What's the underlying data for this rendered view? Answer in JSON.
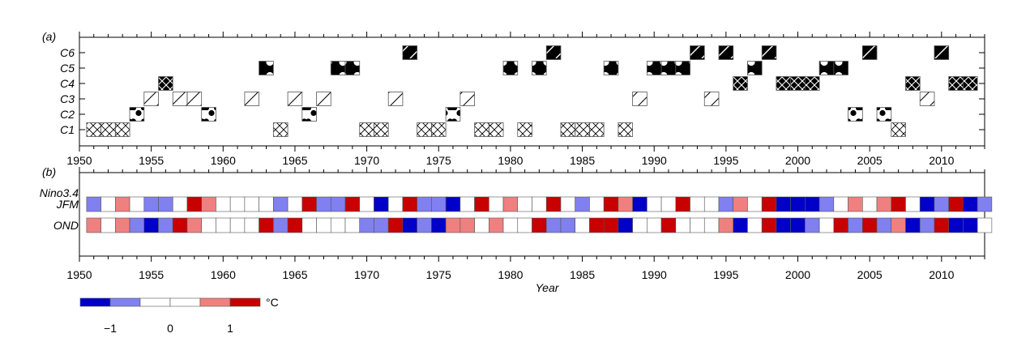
{
  "chart_data": [
    {
      "panel": "(a)",
      "type": "heatmap",
      "x_ticks": [
        1950,
        1955,
        1960,
        1965,
        1970,
        1975,
        1980,
        1985,
        1990,
        1995,
        2000,
        2005,
        2010
      ],
      "xlim": [
        1950,
        2013
      ],
      "row_labels": [
        "C1",
        "C2",
        "C3",
        "C4",
        "C5",
        "C6"
      ],
      "marks": {
        "C1": [
          1951,
          1952,
          1953,
          1964,
          1970,
          1971,
          1974,
          1975,
          1978,
          1979,
          1981,
          1984,
          1985,
          1986,
          1988,
          2007
        ],
        "C2": [
          1954,
          1959,
          1966,
          1976,
          2004,
          2006
        ],
        "C3": [
          1955,
          1957,
          1958,
          1962,
          1965,
          1967,
          1972,
          1977,
          1989,
          1994,
          2009
        ],
        "C4": [
          1956,
          1996,
          1999,
          2000,
          2001,
          2008,
          2011,
          2012
        ],
        "C5": [
          1963,
          1968,
          1969,
          1980,
          1982,
          1987,
          1990,
          1991,
          1992,
          1997,
          2002,
          2003
        ],
        "C6": [
          1973,
          1983,
          1993,
          1995,
          1998,
          2005,
          2010
        ]
      }
    },
    {
      "panel": "(b)",
      "type": "heatmap",
      "title": "Nino3.4",
      "x_ticks": [
        1950,
        1955,
        1960,
        1965,
        1970,
        1975,
        1980,
        1985,
        1990,
        1995,
        2000,
        2005,
        2010
      ],
      "xlim": [
        1950,
        2013
      ],
      "xlabel": "Year",
      "row_labels": [
        "JFM",
        "OND"
      ],
      "start_year": 1951,
      "rows": {
        "JFM": [
          -1,
          0,
          1,
          0,
          -1,
          -1,
          0,
          2,
          1,
          0,
          0,
          0,
          0,
          -1,
          0,
          2,
          -1,
          -1,
          2,
          0,
          -2,
          0,
          2,
          -1,
          -1,
          -2,
          0,
          2,
          0,
          1,
          0,
          0,
          2,
          0,
          -1,
          0,
          2,
          1,
          -2,
          0,
          0,
          2,
          0,
          0,
          -1,
          1,
          0,
          2,
          -2,
          -2,
          -2,
          -1,
          0,
          1,
          0,
          1,
          2,
          0,
          -2,
          -1,
          2,
          -2,
          -1
        ],
        "OND": [
          1,
          0,
          1,
          -1,
          -2,
          -1,
          2,
          1,
          0,
          0,
          0,
          0,
          2,
          -1,
          2,
          0,
          0,
          0,
          0,
          -1,
          -1,
          2,
          -2,
          -1,
          -2,
          1,
          1,
          0,
          1,
          0,
          0,
          2,
          -1,
          -1,
          0,
          2,
          2,
          -2,
          0,
          0,
          2,
          0,
          0,
          0,
          1,
          -2,
          0,
          2,
          -2,
          -2,
          -1,
          0,
          2,
          -1,
          2,
          -1,
          1,
          -2,
          -1,
          2,
          -2,
          -2,
          0
        ]
      },
      "colorbar": {
        "colors": [
          "#0000c8",
          "#8080f0",
          "#ffffff",
          "#ffffff",
          "#f08080",
          "#c80000"
        ],
        "tick_labels": [
          "−1",
          "0",
          "1"
        ],
        "unit": "°C"
      }
    }
  ]
}
